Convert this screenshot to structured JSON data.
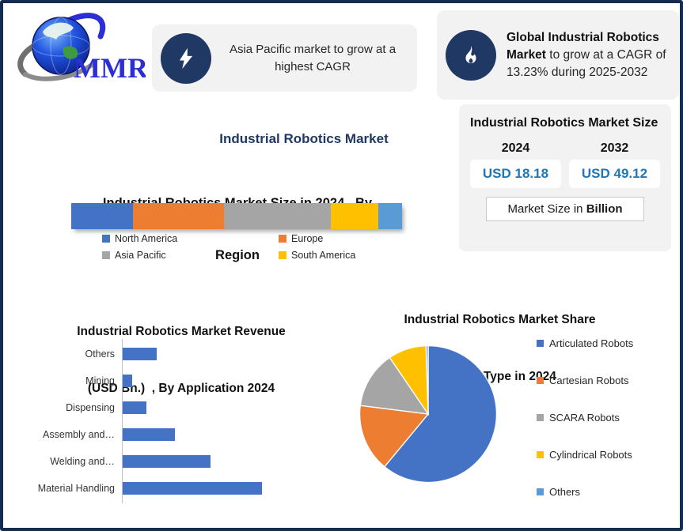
{
  "logo_text": "MMR",
  "main_title": "Industrial Robotics Market",
  "callouts": {
    "lightning": {
      "icon": "lightning-icon",
      "text": "Asia Pacific market to grow at a highest CAGR"
    },
    "flame": {
      "icon": "flame-icon",
      "bold": "Global Industrial Robotics Market",
      "rest": " to grow at a CAGR of 13.23% during 2025-2032"
    }
  },
  "size_panel": {
    "title": "Industrial Robotics Market Size",
    "years": [
      "2024",
      "2032"
    ],
    "values": [
      "USD 18.18",
      "USD 49.12"
    ],
    "note_prefix": "Market Size in ",
    "note_bold": "Billion",
    "value_color": "#2077b6"
  },
  "colors": {
    "navy": "#1f3864",
    "panel_bg": "#f2f2f2",
    "series_blue": "#4472C4",
    "series_orange": "#ED7D31",
    "series_gray": "#A5A5A5",
    "series_yellow": "#FFC000",
    "series_light_blue": "#5B9BD5"
  },
  "chart_data": [
    {
      "type": "bar",
      "subtype": "stacked-horizontal-single-bar",
      "title": "Industrial Robotics Market Size in 2024 , By Region",
      "title_lines": [
        "Industrial Robotics Market Size in 2024 , By",
        "Region"
      ],
      "unit": "percent share (estimated from segment widths)",
      "segments": [
        {
          "label": "North America",
          "percent": 18.7,
          "color": "#4472C4"
        },
        {
          "label": "Europe",
          "percent": 27.5,
          "color": "#ED7D31"
        },
        {
          "label": "Asia Pacific",
          "percent": 32.3,
          "color": "#A5A5A5"
        },
        {
          "label": "South America",
          "percent": 14.4,
          "color": "#FFC000"
        },
        {
          "label": "",
          "percent": 7.1,
          "color": "#5B9BD5"
        }
      ],
      "legend": [
        "North America",
        "Europe",
        "Asia Pacific",
        "South America"
      ],
      "legend_position": "bottom"
    },
    {
      "type": "bar",
      "subtype": "horizontal",
      "title": "Industrial Robotics Market Revenue (USD Bn.)  , By Application 2024",
      "title_lines": [
        "Industrial Robotics Market Revenue",
        "(USD Bn.)  , By Application 2024"
      ],
      "categories": [
        "Others",
        "Mining",
        "Dispensing",
        "Assembly and…",
        "Welding and…",
        "Material Handling"
      ],
      "values": [
        1.8,
        0.5,
        1.25,
        2.75,
        4.6,
        7.3
      ],
      "unit": "USD Bn. (estimated from bar lengths, axis unlabeled)",
      "bar_color": "#4472C4",
      "grid": false
    },
    {
      "type": "pie",
      "title": "Industrial Robotics Market Share (%),by Type in 2024",
      "title_lines": [
        "Industrial Robotics Market Share",
        "(%),by Type in 2024"
      ],
      "labels": [
        "Articulated Robots",
        "Cartesian Robots",
        "SCARA Robots",
        "Cylindrical Robots",
        "Others"
      ],
      "values": [
        61,
        16,
        13.5,
        9,
        0.5
      ],
      "unit": "percent (estimated from slice angles)",
      "colors": [
        "#4472C4",
        "#ED7D31",
        "#A5A5A5",
        "#FFC000",
        "#5B9BD5"
      ],
      "start_angle_deg": 0,
      "direction": "clockwise",
      "legend_position": "right"
    }
  ]
}
